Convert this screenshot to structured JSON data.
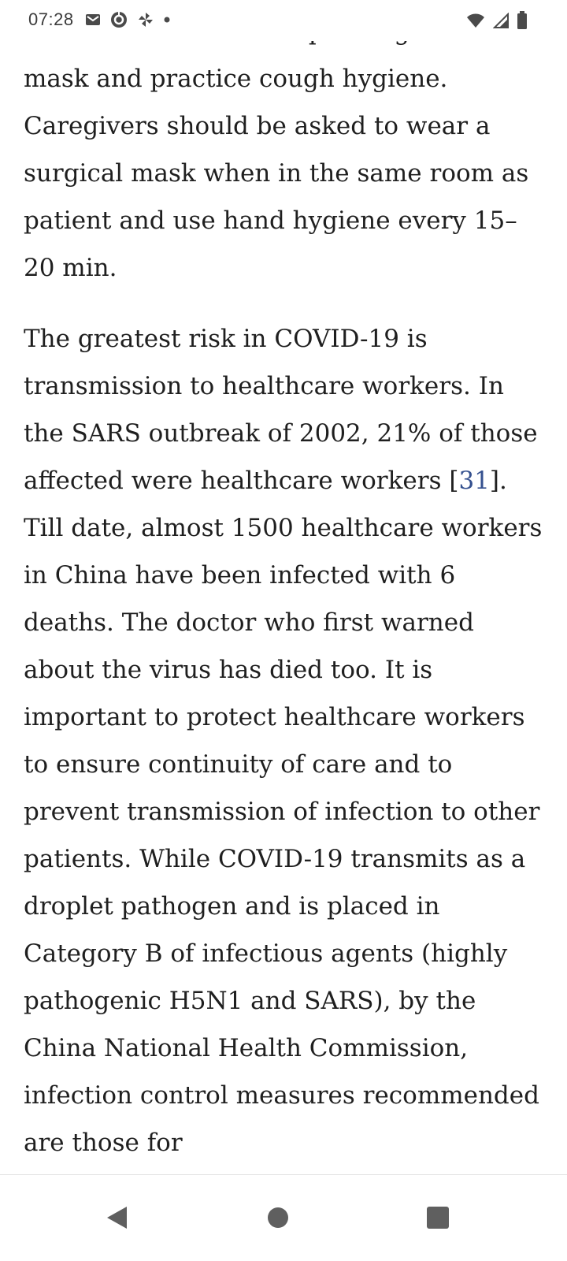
{
  "status_bar": {
    "time": "07:28",
    "left_icons": [
      "gmail-icon",
      "data-saver-icon",
      "pinwheel-icon",
      "notification-dot-icon"
    ],
    "right_icons": [
      "wifi-icon",
      "cellular-signal-icon",
      "battery-icon"
    ]
  },
  "article": {
    "partial_top_line": "be asked to wear a simple surgical",
    "paragraph_1": "mask and practice cough hygiene. Caregivers should be asked to wear a surgical mask when in the same room as patient and use hand hygiene every 15–20 min.",
    "paragraph_2_before_ref": "The greatest risk in COVID-19 is transmission to healthcare workers. In the SARS outbreak of 2002, 21% of those affected were healthcare workers [",
    "reference_number": "31",
    "paragraph_2_after_ref": "]. Till date, almost 1500 healthcare workers in China have been infected with 6 deaths. The doctor who first warned about the virus has died too. It is important to protect healthcare workers to ensure continuity of care and to prevent transmission of infection to other patients. While COVID-19 transmits as a droplet pathogen and is placed in Category B of infectious agents (highly pathogenic H5N1 and SARS), by the China National Health Commission, infection control measures recommended are those for"
  },
  "nav_bar": {
    "buttons": [
      "back-icon",
      "home-icon",
      "recents-icon"
    ]
  },
  "colors": {
    "text": "#1f1f1f",
    "link": "#35518f",
    "icon": "#5f5f5f",
    "background": "#ffffff"
  }
}
